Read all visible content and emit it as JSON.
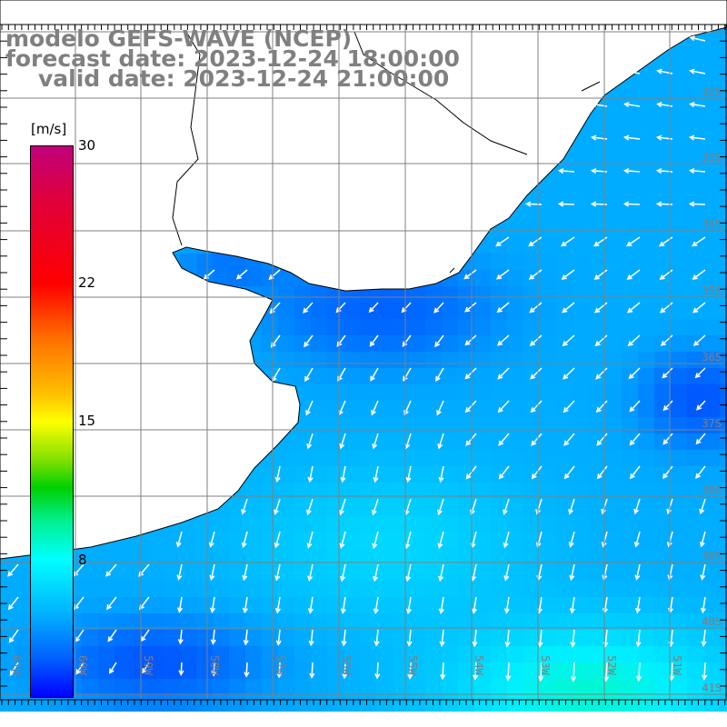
{
  "title": {
    "line1": "modelo GEFS-WAVE (NCEP)",
    "line2": "forecast date: 2023-12-24 18:00:00",
    "line3": "valid date: 2023-12-24 21:00:00"
  },
  "colorbar": {
    "unit": "[m/s]",
    "ticks": [
      "30",
      "22",
      "15",
      "8"
    ],
    "colors": [
      "#c0007a",
      "#ff0000",
      "#ffff00",
      "#00d000",
      "#00ffff",
      "#0000ff"
    ]
  },
  "longitudes": [
    "61W",
    "60W",
    "59W",
    "58W",
    "57W",
    "56W",
    "55W",
    "54W",
    "53W",
    "52W",
    "51W"
  ],
  "latitudes": [
    "32S",
    "33S",
    "34S",
    "35S",
    "36S",
    "37S",
    "38S",
    "39S",
    "40S",
    "41S"
  ],
  "colors": {
    "land": "#ffffff",
    "grid": "#808080",
    "coast": "#000000",
    "arrow": "#ffffff"
  }
}
